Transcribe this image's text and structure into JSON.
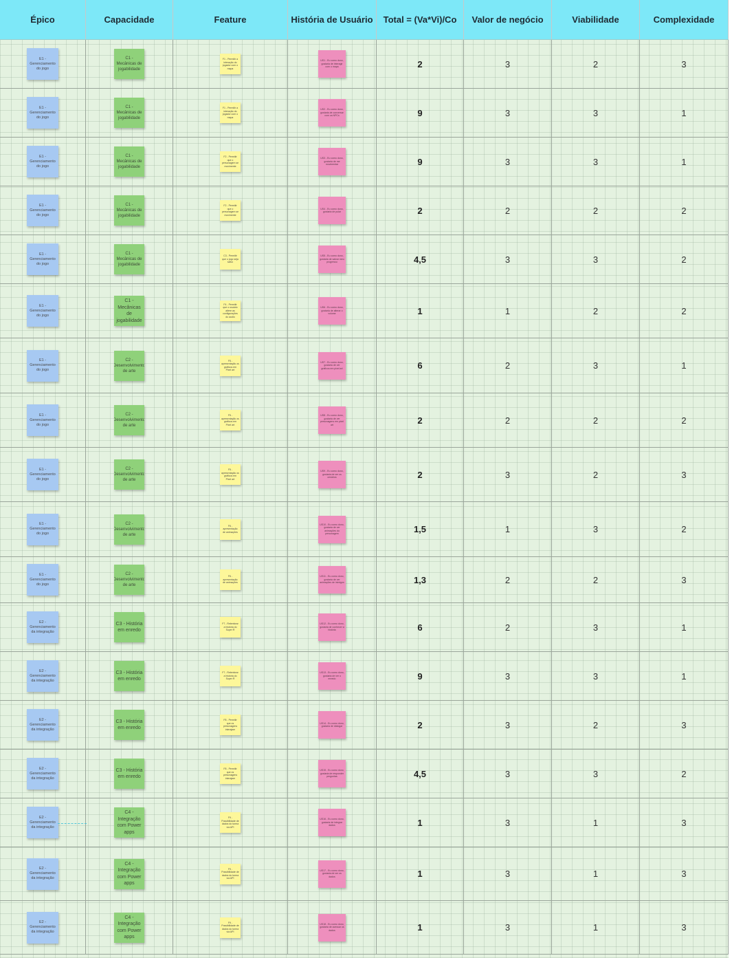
{
  "headers": {
    "epico": "Épico",
    "capacidade": "Capacidade",
    "feature": "Feature",
    "historia": "História de Usuário",
    "total": "Total = (Va*Vi)/Co",
    "valor": "Valor de negócio",
    "viabilidade": "Viabilidade",
    "complexidade": "Complexidade"
  },
  "colors": {
    "header_bg": "#7de8f8",
    "board_bg": "#e4f2e0",
    "epic_sticky": "#a7c9f2",
    "capability_sticky": "#8fd17a",
    "feature_sticky": "#fdf79a",
    "story_sticky": "#ee8fbd"
  },
  "rows": [
    {
      "epico": "E1 - Gerenciamento do jogo",
      "capacidade": "C1 - Mecânicas de jogabilidade",
      "feature": "F1 - Permitir a interação do jogador com o mapa",
      "historia": "US1 - Eu como dono, gostaria de interagir com o mapa",
      "total": "2",
      "valor": "3",
      "viabilidade": "2",
      "complexidade": "3"
    },
    {
      "epico": "E1 - Gerenciamento do jogo",
      "capacidade": "C1 - Mecânicas de jogabilidade",
      "feature": "F1 - Permitir a interação do jogador com o mapa",
      "historia": "US2 - Eu como dono, gostaria de conversar com os NPCs",
      "total": "9",
      "valor": "3",
      "viabilidade": "3",
      "complexidade": "1"
    },
    {
      "epico": "E1 - Gerenciamento do jogo",
      "capacidade": "C1 - Mecânicas de jogabilidade",
      "feature": "F2 - Permitir que o personagem se movimente",
      "historia": "US3 - Eu como dono, gostaria de me movimentar",
      "total": "9",
      "valor": "3",
      "viabilidade": "3",
      "complexidade": "1"
    },
    {
      "epico": "E1 - Gerenciamento do jogo",
      "capacidade": "C1 - Mecânicas de jogabilidade",
      "feature": "F2 - Permitir que o personagem se movimente",
      "historia": "US4 - Eu como dono, gostaria de pular",
      "total": "2",
      "valor": "2",
      "viabilidade": "2",
      "complexidade": "2"
    },
    {
      "epico": "E1 - Gerenciamento do jogo",
      "capacidade": "C1 - Mecânicas de jogabilidade",
      "feature": "C3 - Permitir que o jogo seja salvo",
      "historia": "US5 - Eu como dono, gostaria de salvar meu progresso",
      "total": "4,5",
      "valor": "3",
      "viabilidade": "3",
      "complexidade": "2"
    },
    {
      "epico": "E1 - Gerenciamento do jogo",
      "capacidade": "C1 - Mecânicas de jogabilidade",
      "feature": "F4 - Permitir que o usuário altere as configurações do audio",
      "historia": "US6 - Eu como dono, gostaria de alterar o volume",
      "total": "1",
      "valor": "1",
      "viabilidade": "2",
      "complexidade": "2"
    },
    {
      "epico": "E1 - Gerenciamento do jogo",
      "capacidade": "C2 - Desenvolvimento de arte",
      "feature": "F5 - apresentação os gráficos em Pixel art",
      "historia": "US7 - Eu como dono, gostaria de ver gráficos em pixel art",
      "total": "6",
      "valor": "2",
      "viabilidade": "3",
      "complexidade": "1"
    },
    {
      "epico": "E1 - Gerenciamento do jogo",
      "capacidade": "C2 - Desenvolvimento de arte",
      "feature": "F5 - apresentação os gráficos em Pixel art",
      "historia": "US8 - Eu como dono, gostaria de ver personagens em pixel art",
      "total": "2",
      "valor": "2",
      "viabilidade": "2",
      "complexidade": "2"
    },
    {
      "epico": "E1 - Gerenciamento do jogo",
      "capacidade": "C2 - Desenvolvimento de arte",
      "feature": "F5 - apresentação os gráficos em Pixel art",
      "historia": "US9 - Eu como dono, gostaria de ver os cenários",
      "total": "2",
      "valor": "3",
      "viabilidade": "2",
      "complexidade": "3"
    },
    {
      "epico": "E1 - Gerenciamento do jogo",
      "capacidade": "C2 - Desenvolvimento de arte",
      "feature": "F6 - apresentação de animações",
      "historia": "US10 - Eu como dono, gostaria de ver animações do personagem",
      "total": "1,5",
      "valor": "1",
      "viabilidade": "3",
      "complexidade": "2"
    },
    {
      "epico": "E1 - Gerenciamento do jogo",
      "capacidade": "C2 - Desenvolvimento de arte",
      "feature": "F6 - apresentação de animações",
      "historia": "US11 - Eu como dono, gostaria de ver animações de inimigos",
      "total": "1,3",
      "valor": "2",
      "viabilidade": "2",
      "complexidade": "3"
    },
    {
      "epico": "E2 - Gerenciamento da integração",
      "capacidade": "C3 - História em enredo",
      "feature": "F7 - Relembrar a história do Super R",
      "historia": "US12 - Eu como dono, gostaria de conhecer a história",
      "total": "6",
      "valor": "2",
      "viabilidade": "3",
      "complexidade": "1"
    },
    {
      "epico": "E2 - Gerenciamento da integração",
      "capacidade": "C3 - História em enredo",
      "feature": "F7 - Relembrar a história do Super R",
      "historia": "US13 - Eu como dono, gostaria de ver o enredo",
      "total": "9",
      "valor": "3",
      "viabilidade": "3",
      "complexidade": "1"
    },
    {
      "epico": "E2 - Gerenciamento da integração",
      "capacidade": "C3 - História em enredo",
      "feature": "F8 - Permitir que os personagens interajam",
      "historia": "US14 - Eu como dono, gostaria de dialogar",
      "total": "2",
      "valor": "3",
      "viabilidade": "2",
      "complexidade": "3"
    },
    {
      "epico": "E2 - Gerenciamento da integração",
      "capacidade": "C3 - História em enredo",
      "feature": "F8 - Permitir que os personagens interajam",
      "historia": "US15 - Eu como dono, gostaria de responder perguntas",
      "total": "4,5",
      "valor": "3",
      "viabilidade": "3",
      "complexidade": "2"
    },
    {
      "epico": "E2 - Gerenciamento da integração",
      "capacidade": "C4 - Integração com Power apps",
      "feature": "F9 - Possibilidade de dados do turma via API",
      "historia": "US16 - Eu como dono, gostaria de integrar dados",
      "total": "1",
      "valor": "3",
      "viabilidade": "1",
      "complexidade": "3"
    },
    {
      "epico": "E2 - Gerenciamento da integração",
      "capacidade": "C4 - Integração com Power apps",
      "feature": "F9 - Possibilidade de dados do turma via API",
      "historia": "US17 - Eu como dono, gostaria de ver os dados",
      "total": "1",
      "valor": "3",
      "viabilidade": "1",
      "complexidade": "3"
    },
    {
      "epico": "E2 - Gerenciamento da integração",
      "capacidade": "C4 - Integração com Power apps",
      "feature": "F9 - Possibilidade de dados do turma via API",
      "historia": "US18 - Eu como dono, gostaria de acessar os dados",
      "total": "1",
      "valor": "3",
      "viabilidade": "1",
      "complexidade": "3"
    }
  ]
}
